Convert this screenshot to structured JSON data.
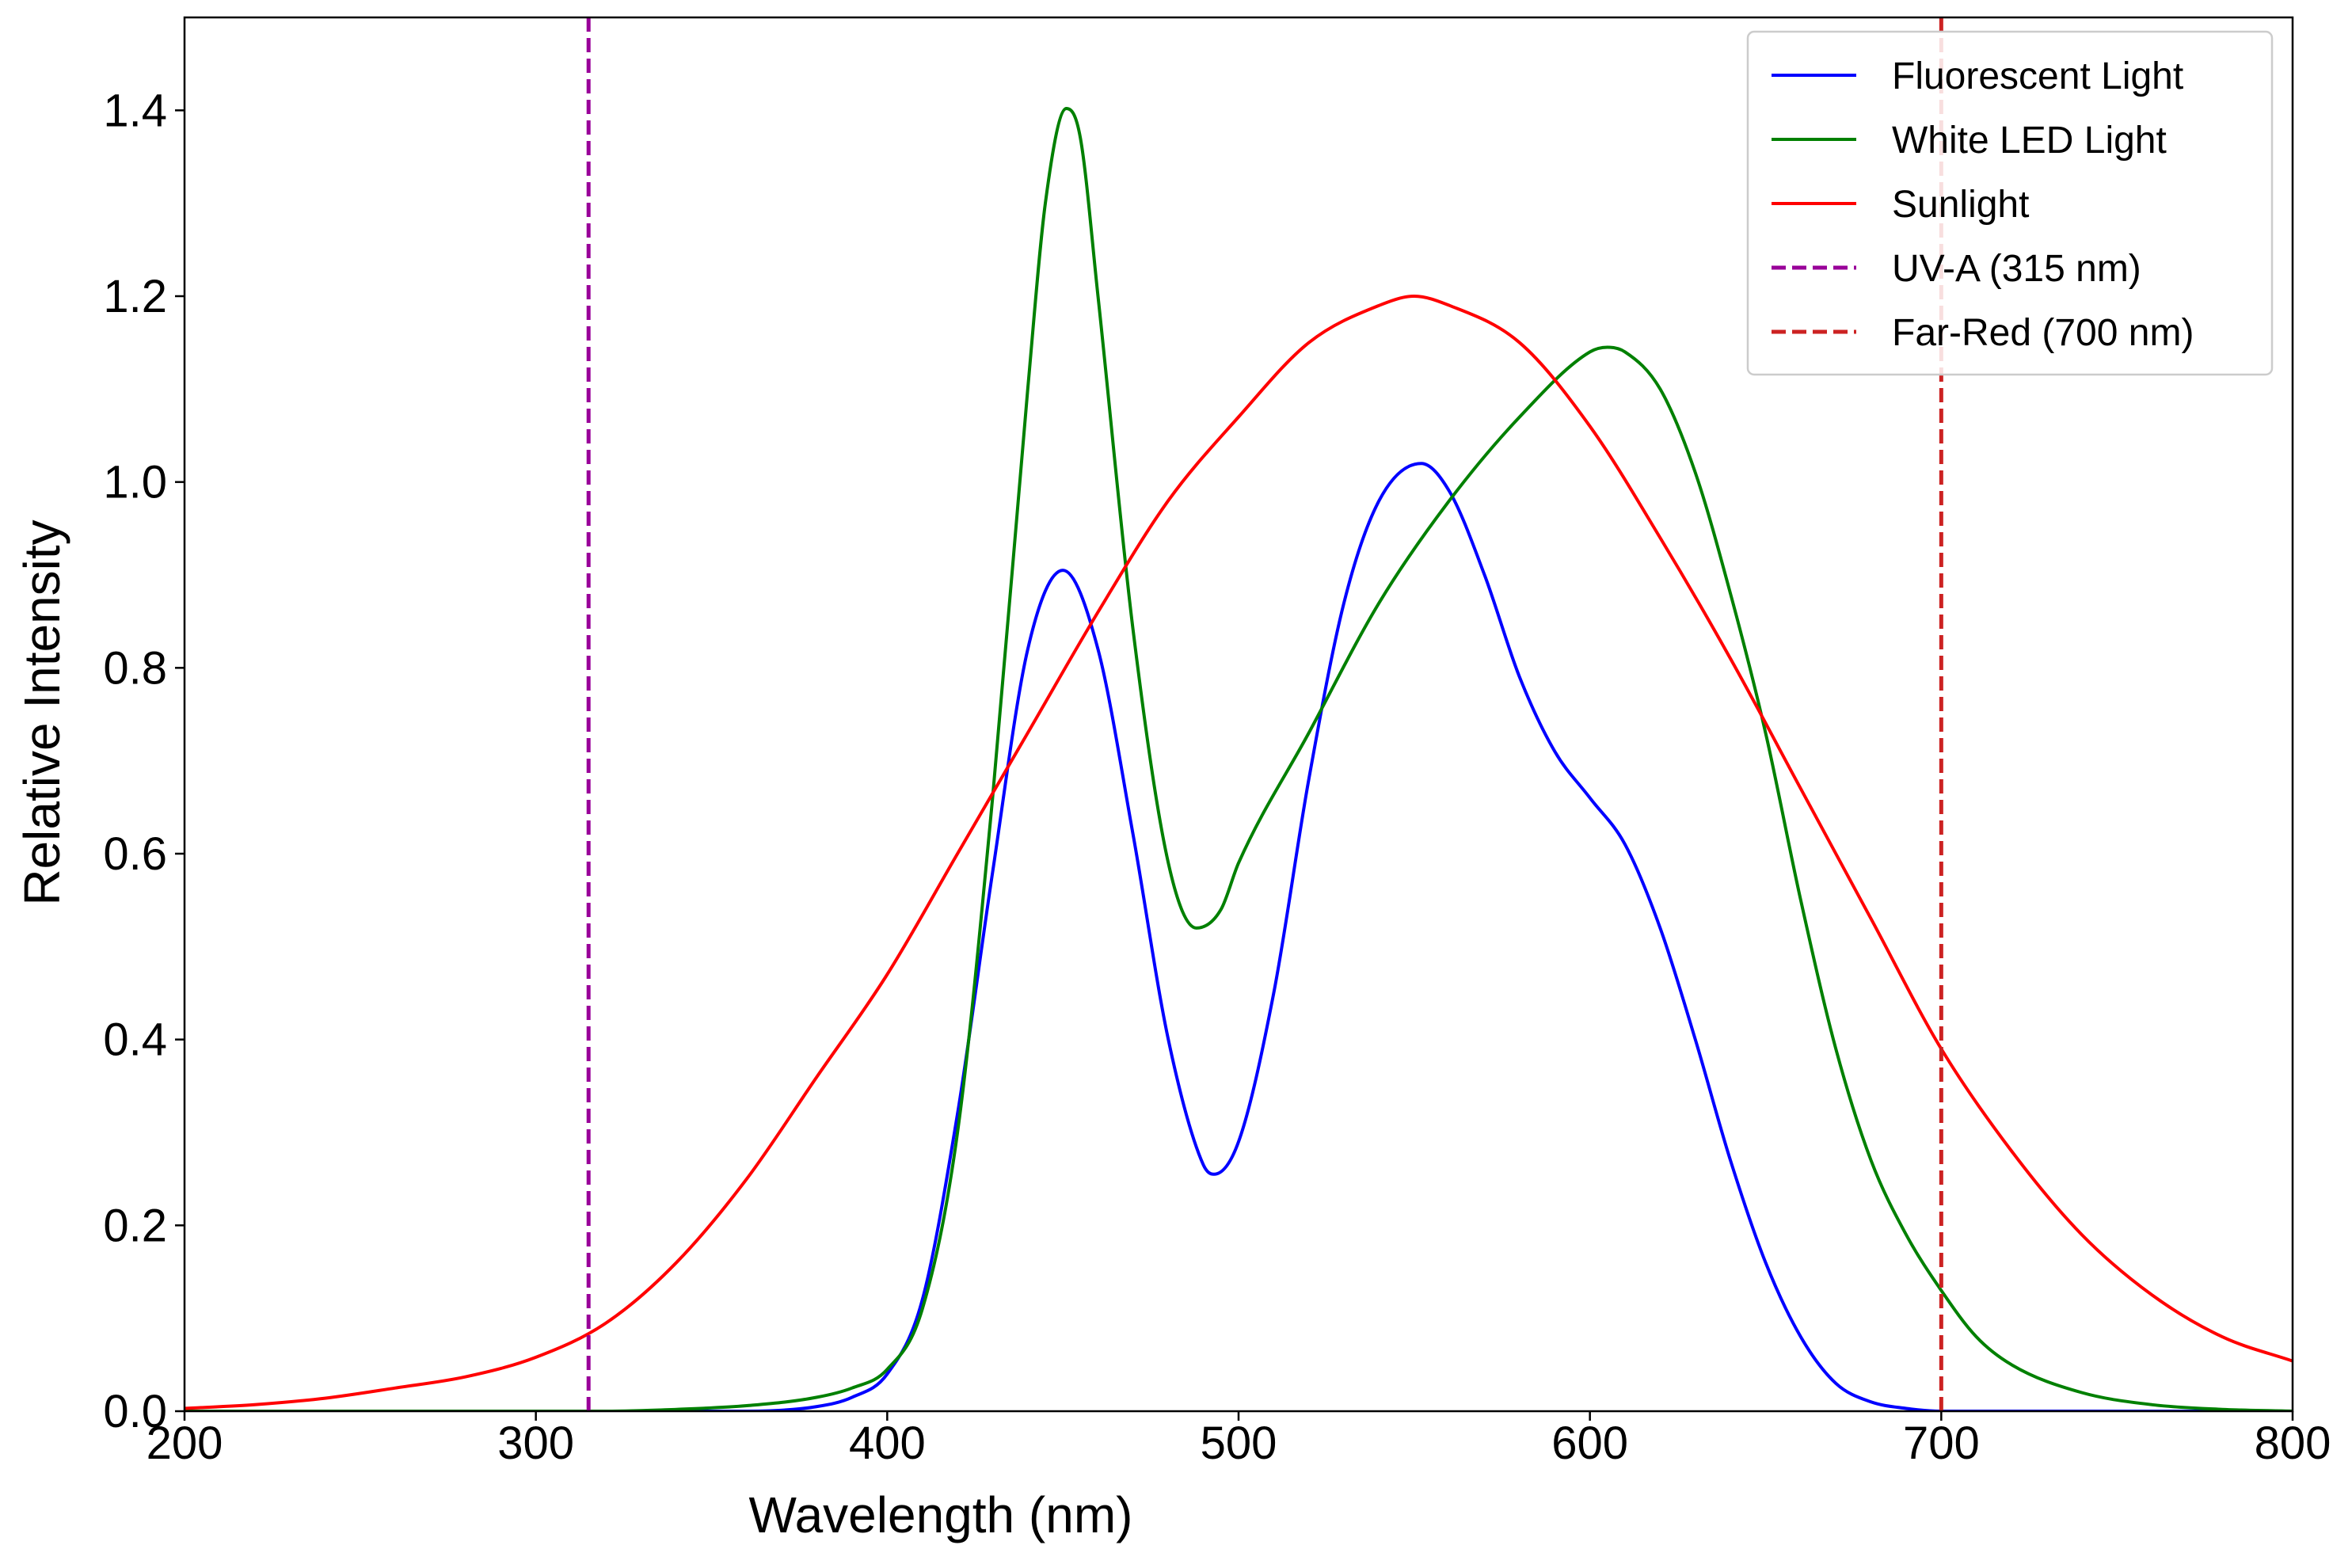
{
  "chart_data": {
    "type": "line",
    "title": "",
    "xlabel": "Wavelength (nm)",
    "ylabel": "Relative Intensity",
    "xlim": [
      200,
      800
    ],
    "ylim": [
      0,
      1.5
    ],
    "xticks": [
      "200",
      "300",
      "400",
      "500",
      "600",
      "700",
      "800"
    ],
    "xtick_values": [
      200,
      300,
      400,
      500,
      600,
      700,
      800
    ],
    "yticks": [
      "0.0",
      "0.2",
      "0.4",
      "0.6",
      "0.8",
      "1.0",
      "1.2",
      "1.4"
    ],
    "ytick_values": [
      0,
      0.2,
      0.4,
      0.6,
      0.8,
      1.0,
      1.2,
      1.4
    ],
    "grid": false,
    "legend_position": "top-right",
    "series": [
      {
        "name": "Fluorescent Light",
        "color": "#0000ff",
        "style": "solid",
        "points": [
          [
            200,
            0
          ],
          [
            300,
            0
          ],
          [
            360,
            0.0
          ],
          [
            380,
            0.005
          ],
          [
            390,
            0.015
          ],
          [
            400,
            0.04
          ],
          [
            410,
            0.12
          ],
          [
            420,
            0.32
          ],
          [
            430,
            0.58
          ],
          [
            440,
            0.82
          ],
          [
            450,
            0.905
          ],
          [
            460,
            0.82
          ],
          [
            470,
            0.62
          ],
          [
            480,
            0.4
          ],
          [
            490,
            0.265
          ],
          [
            493,
            0.255
          ],
          [
            500,
            0.29
          ],
          [
            510,
            0.45
          ],
          [
            520,
            0.68
          ],
          [
            530,
            0.87
          ],
          [
            540,
            0.98
          ],
          [
            552,
            1.02
          ],
          [
            560,
            0.99
          ],
          [
            570,
            0.9
          ],
          [
            580,
            0.79
          ],
          [
            590,
            0.71
          ],
          [
            600,
            0.66
          ],
          [
            610,
            0.61
          ],
          [
            620,
            0.52
          ],
          [
            630,
            0.4
          ],
          [
            640,
            0.27
          ],
          [
            650,
            0.16
          ],
          [
            660,
            0.08
          ],
          [
            670,
            0.03
          ],
          [
            680,
            0.01
          ],
          [
            690,
            0.003
          ],
          [
            700,
            0.0
          ],
          [
            800,
            0
          ]
        ]
      },
      {
        "name": "White LED Light",
        "color": "#008000",
        "style": "solid",
        "points": [
          [
            200,
            0
          ],
          [
            320,
            0.0
          ],
          [
            340,
            0.002
          ],
          [
            360,
            0.006
          ],
          [
            380,
            0.015
          ],
          [
            390,
            0.025
          ],
          [
            400,
            0.045
          ],
          [
            410,
            0.11
          ],
          [
            420,
            0.3
          ],
          [
            430,
            0.66
          ],
          [
            440,
            1.1
          ],
          [
            445,
            1.3
          ],
          [
            451,
            1.402
          ],
          [
            455,
            1.37
          ],
          [
            460,
            1.2
          ],
          [
            470,
            0.84
          ],
          [
            480,
            0.59
          ],
          [
            488,
            0.52
          ],
          [
            495,
            0.54
          ],
          [
            500,
            0.59
          ],
          [
            520,
            0.73
          ],
          [
            540,
            0.87
          ],
          [
            560,
            0.98
          ],
          [
            580,
            1.07
          ],
          [
            600,
            1.14
          ],
          [
            605,
            1.145
          ],
          [
            610,
            1.14
          ],
          [
            620,
            1.1
          ],
          [
            630,
            1.01
          ],
          [
            640,
            0.88
          ],
          [
            650,
            0.73
          ],
          [
            660,
            0.55
          ],
          [
            670,
            0.39
          ],
          [
            680,
            0.27
          ],
          [
            690,
            0.19
          ],
          [
            700,
            0.13
          ],
          [
            710,
            0.08
          ],
          [
            720,
            0.05
          ],
          [
            740,
            0.02
          ],
          [
            760,
            0.007
          ],
          [
            780,
            0.002
          ],
          [
            800,
            0
          ]
        ]
      },
      {
        "name": "Sunlight",
        "color": "#ff0000",
        "style": "solid",
        "points": [
          [
            200,
            0.003
          ],
          [
            220,
            0.007
          ],
          [
            240,
            0.014
          ],
          [
            260,
            0.025
          ],
          [
            280,
            0.037
          ],
          [
            300,
            0.058
          ],
          [
            320,
            0.095
          ],
          [
            340,
            0.16
          ],
          [
            360,
            0.25
          ],
          [
            380,
            0.36
          ],
          [
            400,
            0.47
          ],
          [
            420,
            0.6
          ],
          [
            440,
            0.73
          ],
          [
            460,
            0.86
          ],
          [
            480,
            0.98
          ],
          [
            500,
            1.07
          ],
          [
            520,
            1.15
          ],
          [
            540,
            1.19
          ],
          [
            550,
            1.2
          ],
          [
            560,
            1.19
          ],
          [
            580,
            1.15
          ],
          [
            600,
            1.06
          ],
          [
            620,
            0.94
          ],
          [
            640,
            0.81
          ],
          [
            660,
            0.67
          ],
          [
            680,
            0.53
          ],
          [
            700,
            0.39
          ],
          [
            720,
            0.28
          ],
          [
            740,
            0.19
          ],
          [
            760,
            0.125
          ],
          [
            780,
            0.08
          ],
          [
            800,
            0.054
          ]
        ]
      },
      {
        "name": "UV-A (315 nm)",
        "color": "#990099",
        "style": "dashed",
        "vline_x": 315
      },
      {
        "name": "Far-Red (700 nm)",
        "color": "#cc2222",
        "style": "dashed",
        "vline_x": 700
      }
    ]
  }
}
